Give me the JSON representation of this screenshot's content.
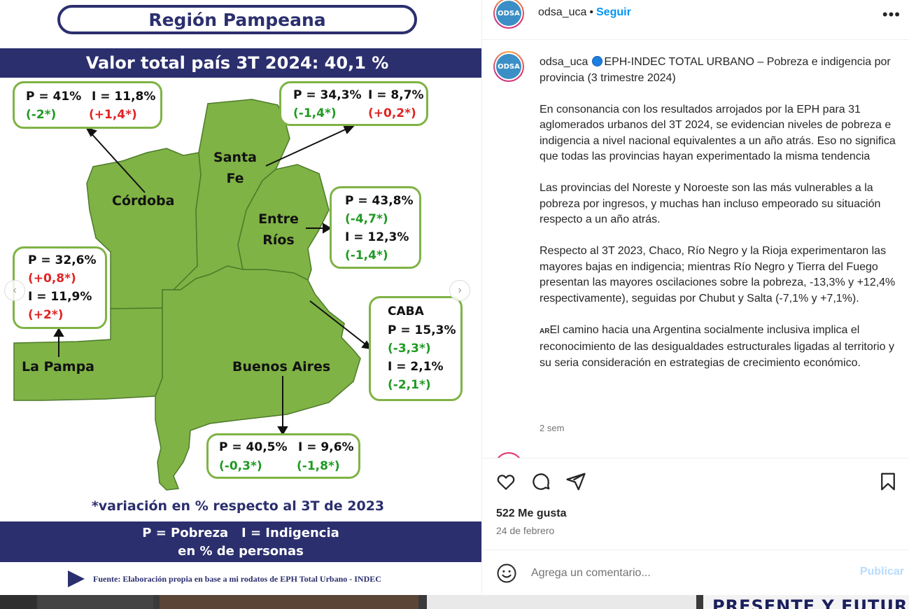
{
  "post": {
    "region_title": "Región Pampeana",
    "total_banner": "Valor total país 3T 2024: 40,1 %",
    "provinces": {
      "cordoba": "Córdoba",
      "santa_fe_1": "Santa",
      "santa_fe_2": "Fe",
      "entre_rios_1": "Entre",
      "entre_rios_2": "Ríos",
      "la_pampa": "La Pampa",
      "buenos_aires": "Buenos Aires",
      "caba": "CABA"
    },
    "callouts": {
      "cordoba": {
        "p": "P = 41%",
        "i": "I = 11,8%",
        "pv": "(-2*)",
        "iv": "(+1,4*)"
      },
      "santa_fe": {
        "p": "P = 34,3%",
        "i": "I = 8,7%",
        "pv": "(-1,4*)",
        "iv": "(+0,2*)"
      },
      "entre_rios": {
        "p": "P = 43,8%",
        "pv": "(-4,7*)",
        "i": "I = 12,3%",
        "iv": "(-1,4*)"
      },
      "la_pampa": {
        "p": "P = 32,6%",
        "pv": "(+0,8*)",
        "i": "I = 11,9%",
        "iv": "(+2*)"
      },
      "caba": {
        "p": "P = 15,3%",
        "pv": "(-3,3*)",
        "i": "I = 2,1%",
        "iv": "(-2,1*)"
      },
      "buenos_aires": {
        "p": "P = 40,5%",
        "i": "I = 9,6%",
        "pv": "(-0,3*)",
        "iv": "(-1,8*)"
      }
    },
    "footnote": "*variación en % respecto al 3T de 2023",
    "legend_line1": "P = Pobreza   I = Indigencia",
    "legend_line2": "en % de personas",
    "source": "Fuente: Elaboración propia en base a mi  rodatos de EPH Total Urbano - INDEC",
    "colors": {
      "navy": "#2b2f6e",
      "map_green": "#7fb345",
      "positive_change": "#1f9a22",
      "negative_change": "#e02424"
    }
  },
  "panel": {
    "avatar_text": "ODSA",
    "username": "odsa_uca",
    "dot": "•",
    "follow": "Seguir",
    "more": "•••",
    "caption_user": "odsa_uca",
    "caption_title": "EPH-INDEC TOTAL URBANO – Pobreza e indigencia por provincia (3 trimestre 2024)",
    "para1": "En consonancia con los resultados arrojados por la EPH para 31 aglomerados urbanos del 3T 2024, se evidencian niveles de pobreza e indigencia a nivel nacional equivalentes a un año atrás. Eso no significa que todas las provincias hayan experimentado la misma tendencia",
    "para2": "Las provincias del Noreste y Noroeste son las más vulnerables a la pobreza por ingresos, y muchas han incluso empeorado su situación respecto a un año atrás.",
    "para3": "Respecto al 3T 2023, Chaco, Río Negro y la Rioja experimentaron las mayores bajas en indigencia; mientras Río Negro y Tierra del Fuego presentan las mayores oscilaciones sobre la pobreza, -13,3% y +12,4% respectivamente), seguidas por Chubut y Salta (-7,1% y +7,1%).",
    "flag": "AR",
    "para4": "El camino hacia una Argentina socialmente inclusiva implica el reconocimiento de las desigualdades estructurales ligadas al territorio y su seria consideración en estrategias de crecimiento económico.",
    "time_ago": "2 sem",
    "likes": "522 Me gusta",
    "date": "24 de febrero",
    "comment_placeholder": "Agrega un comentario...",
    "publish": "Publicar",
    "accent": "#0095f6"
  },
  "strip": {
    "text": "PRESENTE Y FUTUR"
  }
}
